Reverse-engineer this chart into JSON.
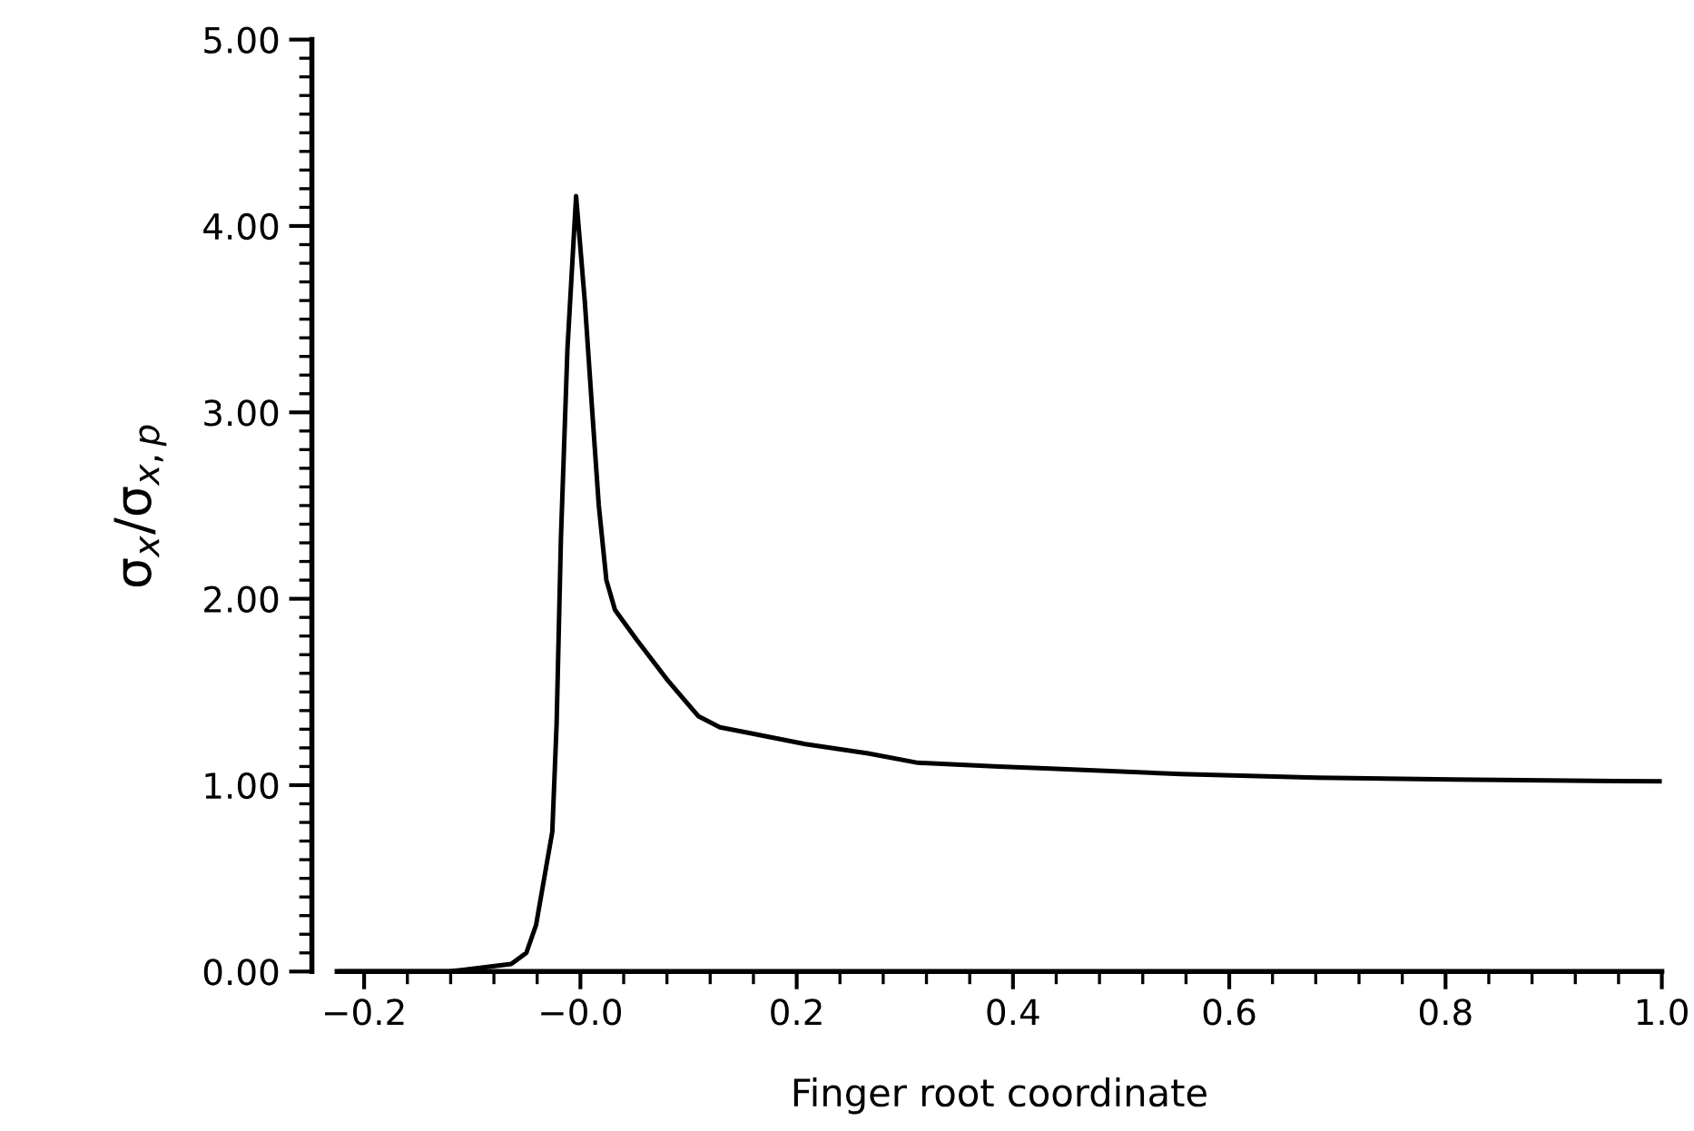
{
  "chart_data": {
    "type": "line",
    "xlabel": "Finger root coordinate",
    "ylabel": "σ$_{x}$/σ$_{x,p}$",
    "series": [
      {
        "color": "#000000",
        "x": [
          -0.223,
          -0.122,
          -0.093,
          -0.064,
          -0.05,
          -0.041,
          -0.032,
          -0.026,
          -0.022,
          -0.018,
          -0.012,
          -0.004,
          0.004,
          0.011,
          0.017,
          0.024,
          0.032,
          0.052,
          0.081,
          0.109,
          0.129,
          0.156,
          0.208,
          0.266,
          0.312,
          0.387,
          0.43,
          0.555,
          0.681,
          0.807,
          1.0
        ],
        "values": [
          0.0,
          0.0,
          0.02,
          0.04,
          0.1,
          0.25,
          0.55,
          0.75,
          1.33,
          2.33,
          3.34,
          4.16,
          3.6,
          3.0,
          2.5,
          2.1,
          1.94,
          1.78,
          1.56,
          1.37,
          1.31,
          1.28,
          1.22,
          1.17,
          1.12,
          1.1,
          1.09,
          1.06,
          1.04,
          1.03,
          1.02
        ]
      }
    ],
    "xlim": [
      -0.225,
      1.0
    ],
    "ylim": [
      0,
      5
    ],
    "xticks": [
      {
        "value": -0.2,
        "label": "−0.2"
      },
      {
        "value": 0,
        "label": "−0.0"
      },
      0.2,
      0.4,
      0.6,
      0.8,
      {
        "value": 1,
        "label": "1.0"
      }
    ],
    "yticks": [
      {
        "value": 0,
        "label": "0.00"
      },
      {
        "value": 1,
        "label": "1.00"
      },
      {
        "value": 2,
        "label": "2.00"
      },
      {
        "value": 3,
        "label": "3.00"
      },
      {
        "value": 4,
        "label": "4.00"
      },
      {
        "value": 5,
        "label": "5.00"
      }
    ],
    "grid": false,
    "legend": false,
    "marker": "none",
    "line_style": "solid"
  }
}
